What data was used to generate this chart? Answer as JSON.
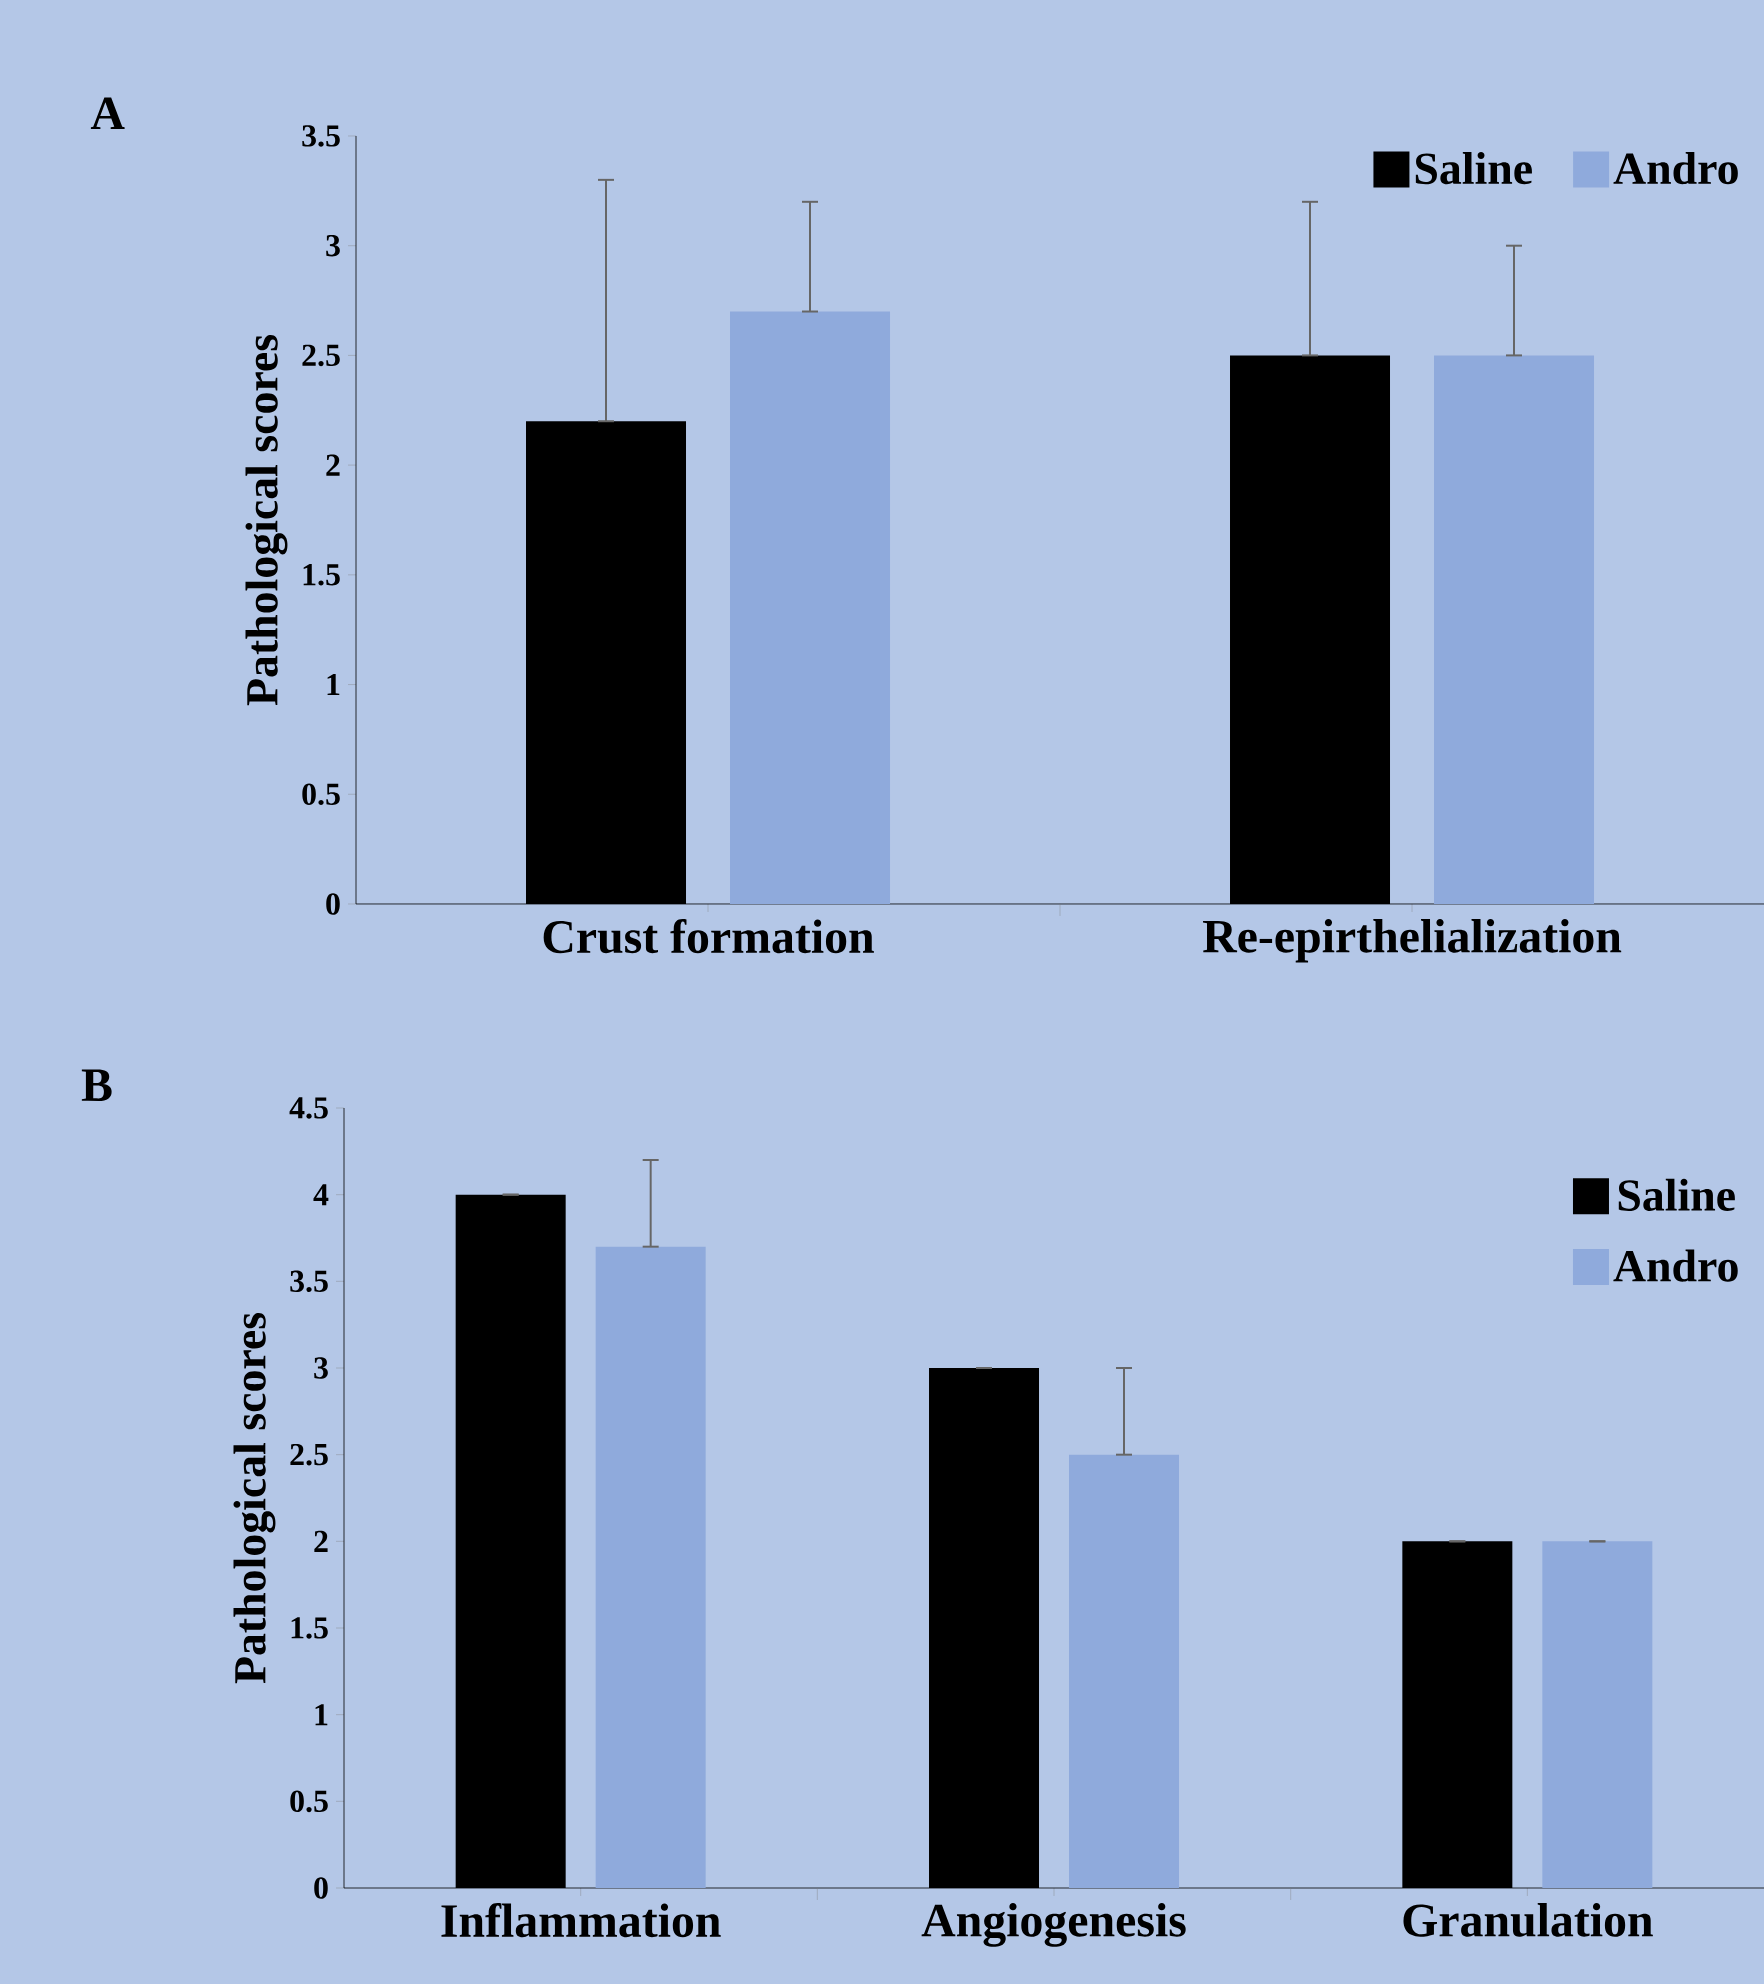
{
  "chart_data": [
    {
      "type": "bar",
      "title": "A",
      "ylabel": "Pathological scores",
      "categories": [
        "Crust formation",
        "Re-epirthelialization"
      ],
      "series": [
        {
          "name": "Saline",
          "color": "#000000",
          "values": [
            2.2,
            2.5
          ],
          "errors": [
            [
              2.2,
              3.3
            ],
            [
              2.5,
              3.2
            ]
          ]
        },
        {
          "name": "Andro",
          "color": "#8faadc",
          "values": [
            2.7,
            2.5
          ],
          "errors": [
            [
              2.7,
              3.2
            ],
            [
              2.5,
              3.0
            ]
          ]
        }
      ],
      "ylim": [
        0,
        3.5
      ],
      "yticks": [
        0,
        0.5,
        1,
        1.5,
        2,
        2.5,
        3,
        3.5
      ],
      "legend": "top right",
      "grid": false
    },
    {
      "type": "bar",
      "title": "B",
      "ylabel": "Pathological scores",
      "categories": [
        "Inflammation",
        "Angiogenesis",
        "Granulation"
      ],
      "series": [
        {
          "name": "Saline",
          "color": "#000000",
          "values": [
            4,
            3,
            2
          ],
          "errors": [
            [
              4,
              4
            ],
            [
              3,
              3
            ],
            [
              2,
              2
            ]
          ]
        },
        {
          "name": "Andro",
          "color": "#8faadc",
          "values": [
            3.7,
            2.5,
            2
          ],
          "errors": [
            [
              3.7,
              4.2
            ],
            [
              2.5,
              3.0
            ],
            [
              2,
              2
            ]
          ]
        }
      ],
      "ylim": [
        0,
        4.5
      ],
      "yticks": [
        0,
        0.5,
        1,
        1.5,
        2,
        2.5,
        3,
        3.5,
        4,
        4.5
      ],
      "legend": "right",
      "grid": false
    }
  ]
}
